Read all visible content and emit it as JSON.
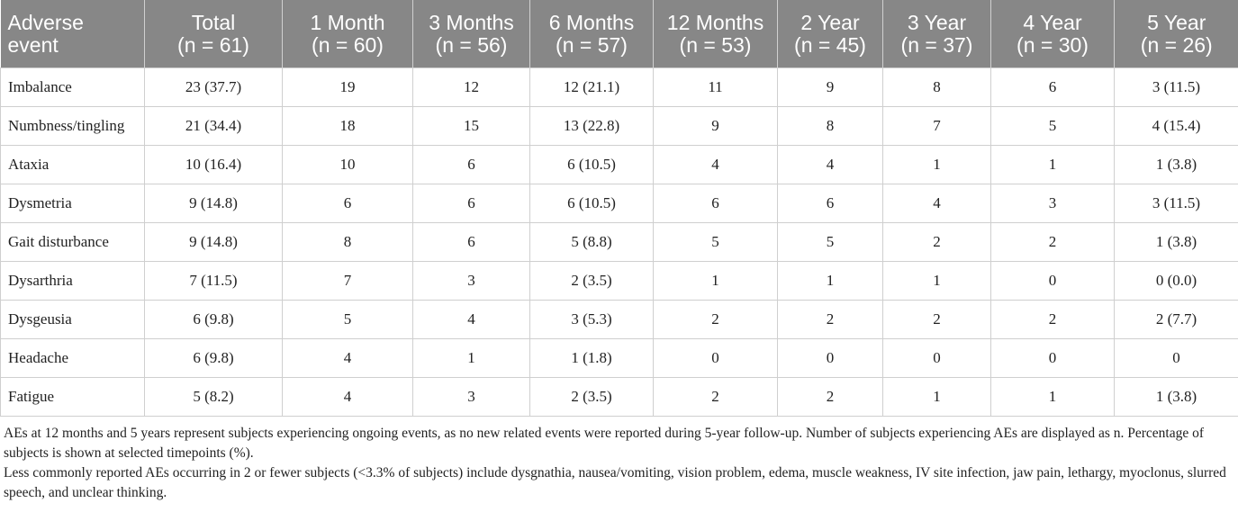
{
  "table": {
    "header": [
      [
        "Adverse",
        "event"
      ],
      [
        "Total",
        "(n = 61)"
      ],
      [
        "1 Month",
        "(n = 60)"
      ],
      [
        "3 Months",
        "(n = 56)"
      ],
      [
        "6 Months",
        "(n = 57)"
      ],
      [
        "12 Months",
        "(n = 53)"
      ],
      [
        "2 Year",
        "(n = 45)"
      ],
      [
        "3 Year",
        "(n = 37)"
      ],
      [
        "4 Year",
        "(n = 30)"
      ],
      [
        "5 Year",
        "(n = 26)"
      ]
    ],
    "rows": [
      [
        "Imbalance",
        "23 (37.7)",
        "19",
        "12",
        "12 (21.1)",
        "11",
        "9",
        "8",
        "6",
        "3 (11.5)"
      ],
      [
        "Numbness/tingling",
        "21 (34.4)",
        "18",
        "15",
        "13 (22.8)",
        "9",
        "8",
        "7",
        "5",
        "4 (15.4)"
      ],
      [
        "Ataxia",
        "10 (16.4)",
        "10",
        "6",
        "6 (10.5)",
        "4",
        "4",
        "1",
        "1",
        "1 (3.8)"
      ],
      [
        "Dysmetria",
        "9 (14.8)",
        "6",
        "6",
        "6 (10.5)",
        "6",
        "6",
        "4",
        "3",
        "3 (11.5)"
      ],
      [
        "Gait disturbance",
        "9 (14.8)",
        "8",
        "6",
        "5 (8.8)",
        "5",
        "5",
        "2",
        "2",
        "1 (3.8)"
      ],
      [
        "Dysarthria",
        "7 (11.5)",
        "7",
        "3",
        "2 (3.5)",
        "1",
        "1",
        "1",
        "0",
        "0 (0.0)"
      ],
      [
        "Dysgeusia",
        "6 (9.8)",
        "5",
        "4",
        "3 (5.3)",
        "2",
        "2",
        "2",
        "2",
        "2 (7.7)"
      ],
      [
        "Headache",
        "6 (9.8)",
        "4",
        "1",
        "1 (1.8)",
        "0",
        "0",
        "0",
        "0",
        "0"
      ],
      [
        "Fatigue",
        "5 (8.2)",
        "4",
        "3",
        "2 (3.5)",
        "2",
        "2",
        "1",
        "1",
        "1 (3.8)"
      ]
    ]
  },
  "footnotes": [
    "AEs at 12 months and 5 years represent subjects experiencing ongoing events, as no new related events were reported during 5-year follow-up. Number of subjects experiencing AEs are displayed as n. Percentage of subjects is shown at selected timepoints (%).",
    "Less commonly reported AEs occurring in 2 or fewer subjects (<3.3% of subjects) include dysgnathia, nausea/vomiting, vision problem, edema, muscle weakness, IV site infection, jaw pain, lethargy, myoclonus, slurred speech, and unclear thinking."
  ]
}
